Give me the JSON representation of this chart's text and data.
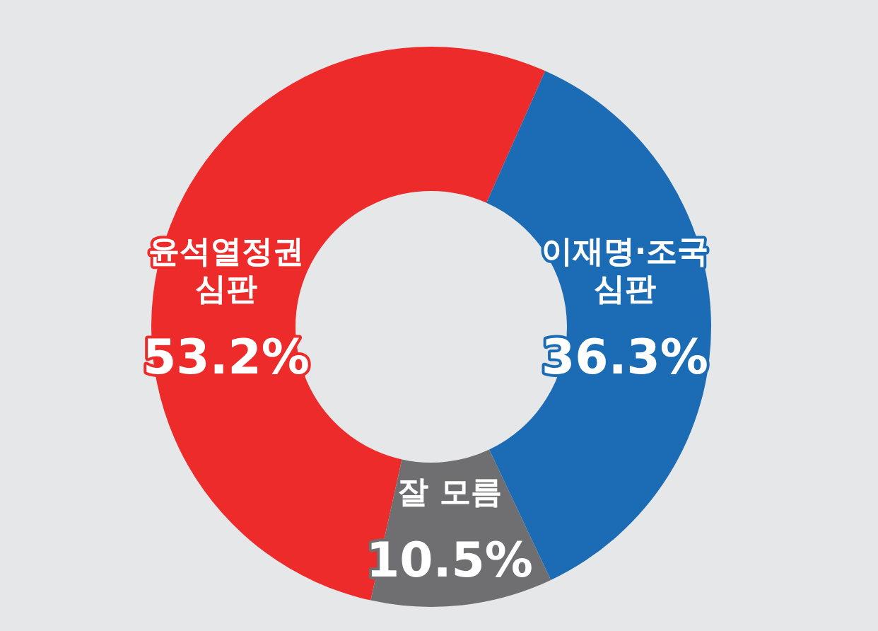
{
  "chart_data": {
    "type": "donut",
    "categories": [
      "윤석열정권\n심판",
      "이재명·조국\n심판",
      "잘 모름"
    ],
    "values": [
      53.2,
      36.3,
      10.5
    ],
    "colors": [
      "#ee2b2b",
      "#1b6bb5",
      "#6f6f71"
    ],
    "value_labels": [
      "53.2%",
      "36.3%",
      "10.5%"
    ]
  }
}
